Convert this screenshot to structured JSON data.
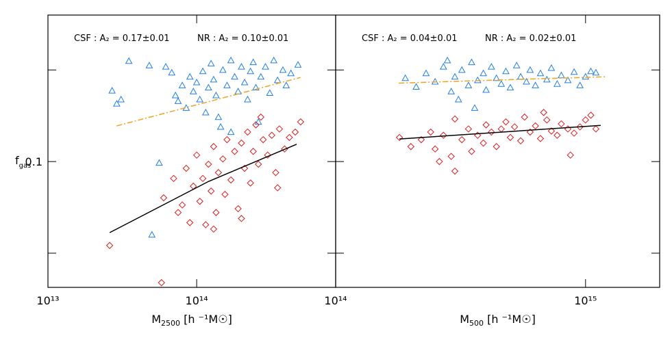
{
  "chart_data": [
    {
      "type": "scatter",
      "log_x": true,
      "log_y": true,
      "xlim": [
        10000000000000.0,
        860000000000000.0
      ],
      "ylim": [
        0.0386,
        0.303
      ],
      "xticks": [
        {
          "value": 10000000000000.0,
          "label": "10¹³"
        },
        {
          "value": 100000000000000.0,
          "label": "10¹⁴"
        }
      ],
      "yticks": [
        0.1
      ],
      "ytick_marks": [
        0.05,
        0.2
      ],
      "xlabel": {
        "main": "M",
        "sub": "2500",
        "rest": " [h ⁻¹M☉]"
      },
      "ylabel": {
        "main": "f",
        "sub": "gas"
      },
      "annotations": [
        "CSF : A₂ = 0.17±0.01",
        "NR : A₂ = 0.10±0.01"
      ],
      "series": [
        {
          "marker": "triangle",
          "color": "#1f7fe0",
          "x": [
            35000000000000.0,
            29000000000000.0,
            31000000000000.0,
            27000000000000.0,
            48000000000000.0,
            50000000000000.0,
            56000000000000.0,
            62000000000000.0,
            68000000000000.0,
            72000000000000.0,
            75000000000000.0,
            80000000000000.0,
            85000000000000.0,
            90000000000000.0,
            95000000000000.0,
            100000000000000.0,
            105000000000000.0,
            110000000000000.0,
            115000000000000.0,
            120000000000000.0,
            125000000000000.0,
            130000000000000.0,
            135000000000000.0,
            140000000000000.0,
            150000000000000.0,
            160000000000000.0,
            170000000000000.0,
            180000000000000.0,
            190000000000000.0,
            200000000000000.0,
            210000000000000.0,
            220000000000000.0,
            230000000000000.0,
            240000000000000.0,
            250000000000000.0,
            270000000000000.0,
            290000000000000.0,
            310000000000000.0,
            330000000000000.0,
            350000000000000.0,
            380000000000000.0,
            400000000000000.0,
            430000000000000.0,
            480000000000000.0,
            145000000000000.0,
            170000000000000.0,
            260000000000000.0
          ],
          "values": [
            0.214,
            0.155,
            0.16,
            0.171,
            0.207,
            0.0575,
            0.099,
            0.205,
            0.196,
            0.165,
            0.158,
            0.178,
            0.15,
            0.19,
            0.17,
            0.182,
            0.16,
            0.198,
            0.145,
            0.175,
            0.21,
            0.186,
            0.165,
            0.14,
            0.2,
            0.178,
            0.215,
            0.19,
            0.17,
            0.205,
            0.182,
            0.16,
            0.198,
            0.212,
            0.175,
            0.19,
            0.205,
            0.168,
            0.215,
            0.185,
            0.2,
            0.178,
            0.195,
            0.208,
            0.13,
            0.125,
            0.135
          ]
        },
        {
          "marker": "diamond",
          "color": "#d81e1e",
          "x": [
            26000000000000.0,
            58000000000000.0,
            60000000000000.0,
            70000000000000.0,
            75000000000000.0,
            80000000000000.0,
            85000000000000.0,
            90000000000000.0,
            95000000000000.0,
            100000000000000.0,
            105000000000000.0,
            110000000000000.0,
            115000000000000.0,
            120000000000000.0,
            125000000000000.0,
            130000000000000.0,
            135000000000000.0,
            140000000000000.0,
            150000000000000.0,
            155000000000000.0,
            160000000000000.0,
            170000000000000.0,
            180000000000000.0,
            190000000000000.0,
            200000000000000.0,
            210000000000000.0,
            220000000000000.0,
            230000000000000.0,
            240000000000000.0,
            250000000000000.0,
            260000000000000.0,
            280000000000000.0,
            300000000000000.0,
            320000000000000.0,
            340000000000000.0,
            360000000000000.0,
            390000000000000.0,
            420000000000000.0,
            460000000000000.0,
            500000000000000.0,
            200000000000000.0,
            130000000000000.0,
            270000000000000.0,
            350000000000000.0
          ],
          "values": [
            0.053,
            0.04,
            0.076,
            0.088,
            0.068,
            0.072,
            0.095,
            0.063,
            0.083,
            0.105,
            0.074,
            0.088,
            0.062,
            0.098,
            0.08,
            0.112,
            0.068,
            0.092,
            0.102,
            0.078,
            0.118,
            0.087,
            0.108,
            0.07,
            0.115,
            0.095,
            0.125,
            0.085,
            0.108,
            0.132,
            0.098,
            0.118,
            0.105,
            0.122,
            0.092,
            0.128,
            0.11,
            0.12,
            0.125,
            0.135,
            0.065,
            0.06,
            0.14,
            0.082
          ]
        }
      ],
      "fits": [
        {
          "color": "#f0a020",
          "style": "dashdot",
          "x": [
            29000000000000.0,
            500000000000000.0
          ],
          "values": [
            0.131,
            0.189
          ]
        },
        {
          "color": "#000000",
          "style": "solid",
          "x": [
            26000000000000.0,
            120000000000000.0,
            470000000000000.0
          ],
          "values": [
            0.0584,
            0.086,
            0.114
          ]
        }
      ]
    },
    {
      "type": "scatter",
      "log_x": true,
      "log_y": true,
      "xlim": [
        100000000000000.0,
        1980000000000000.0
      ],
      "ylim": [
        0.0386,
        0.303
      ],
      "xticks": [
        {
          "value": 100000000000000.0,
          "label": "10¹⁴"
        },
        {
          "value": 1000000000000000.0,
          "label": "10¹⁵"
        }
      ],
      "ytick_marks": [
        0.05,
        0.1,
        0.2
      ],
      "xlabel": {
        "main": "M",
        "sub": "500",
        "rest": " [h ⁻¹M☉]"
      },
      "annotations": [
        "CSF : A₂ = 0.04±0.01",
        "NR : A₂ = 0.02±0.01"
      ],
      "series": [
        {
          "marker": "triangle",
          "color": "#1f7fe0",
          "x": [
            190000000000000.0,
            210000000000000.0,
            230000000000000.0,
            250000000000000.0,
            270000000000000.0,
            290000000000000.0,
            300000000000000.0,
            310000000000000.0,
            320000000000000.0,
            340000000000000.0,
            350000000000000.0,
            370000000000000.0,
            390000000000000.0,
            400000000000000.0,
            420000000000000.0,
            440000000000000.0,
            460000000000000.0,
            480000000000000.0,
            500000000000000.0,
            530000000000000.0,
            550000000000000.0,
            580000000000000.0,
            600000000000000.0,
            630000000000000.0,
            660000000000000.0,
            700000000000000.0,
            730000000000000.0,
            770000000000000.0,
            800000000000000.0,
            850000000000000.0,
            900000000000000.0,
            950000000000000.0,
            1000000000000000.0,
            1050000000000000.0,
            1100000000000000.0,
            360000000000000.0,
            280000000000000.0
          ],
          "values": [
            0.188,
            0.176,
            0.195,
            0.183,
            0.205,
            0.17,
            0.19,
            0.16,
            0.2,
            0.178,
            0.212,
            0.185,
            0.195,
            0.172,
            0.205,
            0.188,
            0.18,
            0.198,
            0.175,
            0.207,
            0.19,
            0.183,
            0.2,
            0.178,
            0.195,
            0.186,
            0.203,
            0.18,
            0.192,
            0.185,
            0.197,
            0.178,
            0.19,
            0.198,
            0.196,
            0.15,
            0.215
          ]
        },
        {
          "marker": "diamond",
          "color": "#d81e1e",
          "x": [
            180000000000000.0,
            200000000000000.0,
            220000000000000.0,
            240000000000000.0,
            250000000000000.0,
            270000000000000.0,
            290000000000000.0,
            300000000000000.0,
            320000000000000.0,
            340000000000000.0,
            350000000000000.0,
            370000000000000.0,
            390000000000000.0,
            400000000000000.0,
            420000000000000.0,
            440000000000000.0,
            460000000000000.0,
            480000000000000.0,
            500000000000000.0,
            520000000000000.0,
            550000000000000.0,
            570000000000000.0,
            600000000000000.0,
            630000000000000.0,
            660000000000000.0,
            700000000000000.0,
            730000000000000.0,
            770000000000000.0,
            800000000000000.0,
            850000000000000.0,
            900000000000000.0,
            950000000000000.0,
            1000000000000000.0,
            1050000000000000.0,
            1100000000000000.0,
            300000000000000.0,
            870000000000000.0,
            680000000000000.0,
            260000000000000.0
          ],
          "values": [
            0.12,
            0.112,
            0.118,
            0.125,
            0.11,
            0.122,
            0.104,
            0.138,
            0.118,
            0.128,
            0.108,
            0.122,
            0.115,
            0.132,
            0.125,
            0.112,
            0.128,
            0.135,
            0.12,
            0.13,
            0.117,
            0.14,
            0.125,
            0.131,
            0.119,
            0.137,
            0.126,
            0.122,
            0.133,
            0.128,
            0.124,
            0.13,
            0.137,
            0.142,
            0.128,
            0.093,
            0.105,
            0.145,
            0.1
          ]
        }
      ],
      "fits": [
        {
          "color": "#f0a020",
          "style": "dashdot",
          "x": [
            179000000000000.0,
            1200000000000000.0
          ],
          "values": [
            0.181,
            0.19
          ]
        },
        {
          "color": "#000000",
          "style": "solid",
          "x": [
            180000000000000.0,
            1150000000000000.0
          ],
          "values": [
            0.1186,
            0.1315
          ]
        }
      ]
    }
  ]
}
